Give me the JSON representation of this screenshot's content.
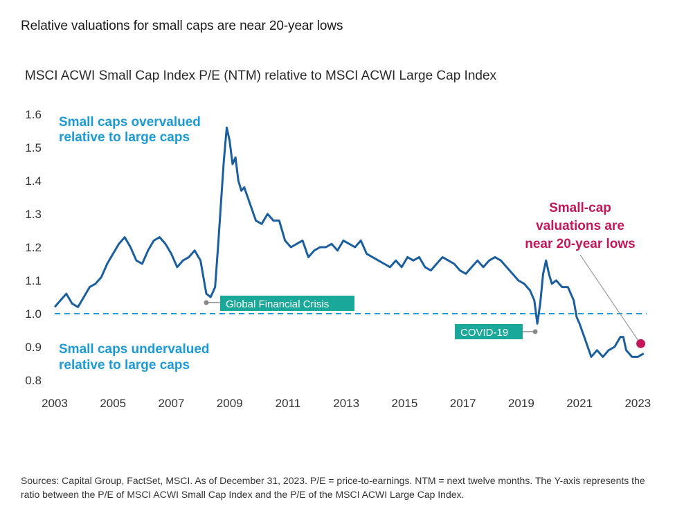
{
  "headline": "Relative valuations for small caps are near 20-year lows",
  "footnote": "Sources: Capital Group, FactSet, MSCI. As of December 31, 2023. P/E = price-to-earnings. NTM = next twelve months. The Y-axis represents the ratio between the P/E of MSCI ACWI Small Cap Index and the P/E of the MSCI ACWI Large Cap Index.",
  "colors": {
    "line": "#1b5e9e",
    "reference": "#1d9ad6",
    "label_box": "#1aa89a",
    "highlight": "#c2185b"
  },
  "chart_data": {
    "type": "line",
    "title": "MSCI ACWI Small Cap Index P/E (NTM) relative to MSCI ACWI Large Cap Index",
    "xlabel": "",
    "ylabel": "",
    "xlim": [
      2003,
      2023.3
    ],
    "ylim": [
      0.8,
      1.6
    ],
    "x_ticks": [
      "2003",
      "2005",
      "2007",
      "2009",
      "2011",
      "2013",
      "2015",
      "2017",
      "2019",
      "2021",
      "2023"
    ],
    "y_ticks": [
      "0.8",
      "0.9",
      "1.0",
      "1.1",
      "1.2",
      "1.3",
      "1.4",
      "1.5",
      "1.6"
    ],
    "grid": false,
    "reference_line": {
      "y": 1.0,
      "style": "dashed"
    },
    "series": [
      {
        "x": [
          2003.0,
          2003.2,
          2003.4,
          2003.6,
          2003.8,
          2004.0,
          2004.2,
          2004.4,
          2004.6,
          2004.8,
          2005.0,
          2005.2,
          2005.4,
          2005.6,
          2005.8,
          2006.0,
          2006.2,
          2006.4,
          2006.6,
          2006.8,
          2007.0,
          2007.2,
          2007.4,
          2007.6,
          2007.8,
          2008.0,
          2008.2,
          2008.35,
          2008.5,
          2008.6,
          2008.7,
          2008.8,
          2008.9,
          2009.0,
          2009.1,
          2009.2,
          2009.3,
          2009.4,
          2009.5,
          2009.7,
          2009.9,
          2010.1,
          2010.3,
          2010.5,
          2010.7,
          2010.9,
          2011.1,
          2011.3,
          2011.5,
          2011.7,
          2011.9,
          2012.1,
          2012.3,
          2012.5,
          2012.7,
          2012.9,
          2013.1,
          2013.3,
          2013.5,
          2013.7,
          2013.9,
          2014.1,
          2014.3,
          2014.5,
          2014.7,
          2014.9,
          2015.1,
          2015.3,
          2015.5,
          2015.7,
          2015.9,
          2016.1,
          2016.3,
          2016.5,
          2016.7,
          2016.9,
          2017.1,
          2017.3,
          2017.5,
          2017.7,
          2017.9,
          2018.1,
          2018.3,
          2018.5,
          2018.7,
          2018.9,
          2019.1,
          2019.3,
          2019.45,
          2019.55,
          2019.65,
          2019.75,
          2019.85,
          2019.95,
          2020.05,
          2020.2,
          2020.4,
          2020.6,
          2020.8,
          2020.9,
          2021.0,
          2021.2,
          2021.4,
          2021.6,
          2021.8,
          2022.0,
          2022.2,
          2022.4,
          2022.5,
          2022.6,
          2022.8,
          2023.0,
          2023.2
        ],
        "y": [
          1.02,
          1.04,
          1.06,
          1.03,
          1.02,
          1.05,
          1.08,
          1.09,
          1.11,
          1.15,
          1.18,
          1.21,
          1.23,
          1.2,
          1.16,
          1.15,
          1.19,
          1.22,
          1.23,
          1.21,
          1.18,
          1.14,
          1.16,
          1.17,
          1.19,
          1.16,
          1.06,
          1.05,
          1.08,
          1.2,
          1.33,
          1.46,
          1.56,
          1.52,
          1.45,
          1.47,
          1.4,
          1.37,
          1.38,
          1.33,
          1.28,
          1.27,
          1.3,
          1.28,
          1.28,
          1.22,
          1.2,
          1.21,
          1.22,
          1.17,
          1.19,
          1.2,
          1.2,
          1.21,
          1.19,
          1.22,
          1.21,
          1.2,
          1.22,
          1.18,
          1.17,
          1.16,
          1.15,
          1.14,
          1.16,
          1.14,
          1.17,
          1.16,
          1.17,
          1.14,
          1.13,
          1.15,
          1.17,
          1.16,
          1.15,
          1.13,
          1.12,
          1.14,
          1.16,
          1.14,
          1.16,
          1.17,
          1.16,
          1.14,
          1.12,
          1.1,
          1.09,
          1.07,
          1.04,
          0.97,
          1.03,
          1.12,
          1.16,
          1.12,
          1.09,
          1.1,
          1.08,
          1.08,
          1.04,
          0.99,
          0.97,
          0.92,
          0.87,
          0.89,
          0.87,
          0.89,
          0.9,
          0.93,
          0.93,
          0.89,
          0.87,
          0.87,
          0.88
        ]
      }
    ],
    "annotations": {
      "overvalued": [
        "Small caps overvalued",
        "relative to large caps"
      ],
      "undervalued": [
        "Small caps undervalued",
        "relative to large caps"
      ],
      "gfc": "Global Financial Crisis",
      "covid": "COVID-19",
      "lows": [
        "Small-cap",
        "valuations are",
        "near 20-year lows"
      ]
    },
    "highlight_point": {
      "x": 2023.1,
      "y": 0.91
    }
  }
}
